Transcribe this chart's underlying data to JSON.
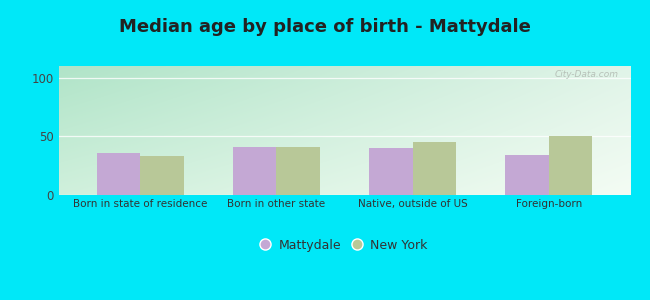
{
  "title": "Median age by place of birth - Mattydale",
  "categories": [
    "Born in state of residence",
    "Born in other state",
    "Native, outside of US",
    "Foreign-born"
  ],
  "mattydale_values": [
    36,
    41,
    40,
    34
  ],
  "newyork_values": [
    33,
    41,
    45,
    50
  ],
  "mattydale_color": "#c4a8d4",
  "newyork_color": "#b8c898",
  "ylim": [
    0,
    110
  ],
  "yticks": [
    0,
    50,
    100
  ],
  "grad_top_left": "#c8ecd0",
  "grad_bottom_right": "#f0f8f0",
  "outer_bg": "#00e8f8",
  "legend_mattydale": "Mattydale",
  "legend_newyork": "New York",
  "title_fontsize": 13,
  "bar_width": 0.32,
  "watermark": "City-Data.com"
}
